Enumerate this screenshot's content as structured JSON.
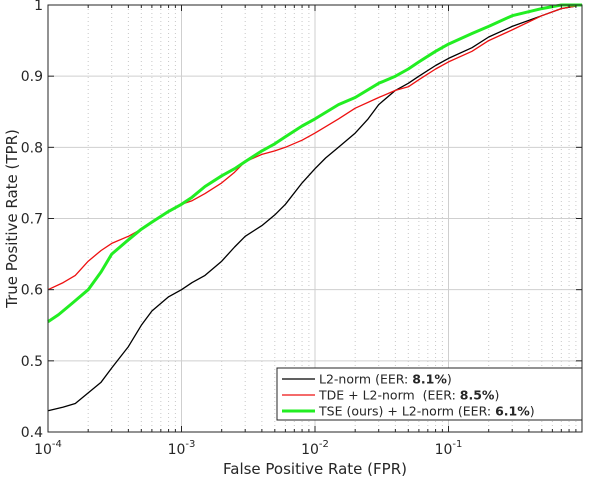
{
  "chart_data": {
    "type": "line",
    "title": "",
    "xlabel": "False Positive Rate (FPR)",
    "ylabel": "True Positive Rate (TPR)",
    "xscale": "log",
    "xlim": [
      0.0001,
      1
    ],
    "ylim": [
      0.4,
      1
    ],
    "grid": true,
    "legend_position": "bottom-right",
    "x_ticks": [
      {
        "value": 0.0001,
        "base": "10",
        "exp": "-4"
      },
      {
        "value": 0.001,
        "base": "10",
        "exp": "-3"
      },
      {
        "value": 0.01,
        "base": "10",
        "exp": "-2"
      },
      {
        "value": 0.1,
        "base": "10",
        "exp": "-1"
      }
    ],
    "y_ticks": [
      {
        "value": 0.4,
        "label": "0.4"
      },
      {
        "value": 0.5,
        "label": "0.5"
      },
      {
        "value": 0.6,
        "label": "0.6"
      },
      {
        "value": 0.7,
        "label": "0.7"
      },
      {
        "value": 0.8,
        "label": "0.8"
      },
      {
        "value": 0.9,
        "label": "0.9"
      },
      {
        "value": 1.0,
        "label": "1"
      }
    ],
    "series": [
      {
        "name": "L2-norm",
        "legend_prefix": "L2-norm (EER: ",
        "legend_eer": "8.1%",
        "legend_suffix": ")",
        "color": "#000000",
        "x": [
          0.0001,
          0.00013,
          0.00016,
          0.0002,
          0.00025,
          0.0003,
          0.0004,
          0.0005,
          0.0006,
          0.0008,
          0.001,
          0.0012,
          0.0015,
          0.002,
          0.0025,
          0.003,
          0.004,
          0.005,
          0.006,
          0.008,
          0.01,
          0.012,
          0.015,
          0.02,
          0.025,
          0.03,
          0.04,
          0.05,
          0.06,
          0.08,
          0.1,
          0.15,
          0.2,
          0.3,
          0.5,
          0.7,
          1.0
        ],
        "y": [
          0.43,
          0.435,
          0.44,
          0.455,
          0.47,
          0.49,
          0.52,
          0.55,
          0.57,
          0.59,
          0.6,
          0.61,
          0.62,
          0.64,
          0.66,
          0.675,
          0.69,
          0.705,
          0.72,
          0.75,
          0.77,
          0.785,
          0.8,
          0.82,
          0.84,
          0.86,
          0.88,
          0.89,
          0.9,
          0.915,
          0.925,
          0.94,
          0.955,
          0.97,
          0.985,
          0.995,
          1.0
        ]
      },
      {
        "name": "TDE + L2-norm",
        "legend_prefix": "TDE + L2-norm  (EER: ",
        "legend_eer": "8.5%",
        "legend_suffix": ")",
        "color": "#ee1111",
        "x": [
          0.0001,
          0.00013,
          0.00016,
          0.0002,
          0.00025,
          0.0003,
          0.0004,
          0.0005,
          0.0006,
          0.0008,
          0.001,
          0.0012,
          0.0015,
          0.002,
          0.0025,
          0.003,
          0.004,
          0.005,
          0.006,
          0.008,
          0.01,
          0.015,
          0.02,
          0.03,
          0.04,
          0.05,
          0.06,
          0.08,
          0.1,
          0.15,
          0.2,
          0.3,
          0.5,
          0.7,
          1.0
        ],
        "y": [
          0.6,
          0.61,
          0.62,
          0.64,
          0.655,
          0.665,
          0.675,
          0.685,
          0.695,
          0.71,
          0.72,
          0.725,
          0.735,
          0.75,
          0.765,
          0.78,
          0.79,
          0.795,
          0.8,
          0.81,
          0.82,
          0.84,
          0.855,
          0.87,
          0.88,
          0.885,
          0.895,
          0.91,
          0.92,
          0.935,
          0.95,
          0.965,
          0.985,
          0.995,
          1.0
        ]
      },
      {
        "name": "TSE (ours) + L2-norm",
        "legend_prefix": "TSE (ours) + L2-norm (EER: ",
        "legend_eer": "6.1%",
        "legend_suffix": ")",
        "color": "#22ee22",
        "x": [
          0.0001,
          0.00012,
          0.00015,
          0.0002,
          0.00025,
          0.0003,
          0.0004,
          0.0005,
          0.0006,
          0.0008,
          0.001,
          0.0012,
          0.0015,
          0.002,
          0.0025,
          0.003,
          0.004,
          0.005,
          0.006,
          0.008,
          0.01,
          0.015,
          0.02,
          0.03,
          0.04,
          0.05,
          0.06,
          0.08,
          0.1,
          0.15,
          0.2,
          0.3,
          0.5,
          0.7,
          1.0
        ],
        "y": [
          0.555,
          0.565,
          0.58,
          0.6,
          0.625,
          0.65,
          0.67,
          0.685,
          0.695,
          0.71,
          0.72,
          0.73,
          0.745,
          0.76,
          0.77,
          0.78,
          0.795,
          0.805,
          0.815,
          0.83,
          0.84,
          0.86,
          0.87,
          0.89,
          0.9,
          0.91,
          0.92,
          0.935,
          0.945,
          0.96,
          0.97,
          0.985,
          0.995,
          1.0,
          1.0
        ]
      }
    ]
  }
}
